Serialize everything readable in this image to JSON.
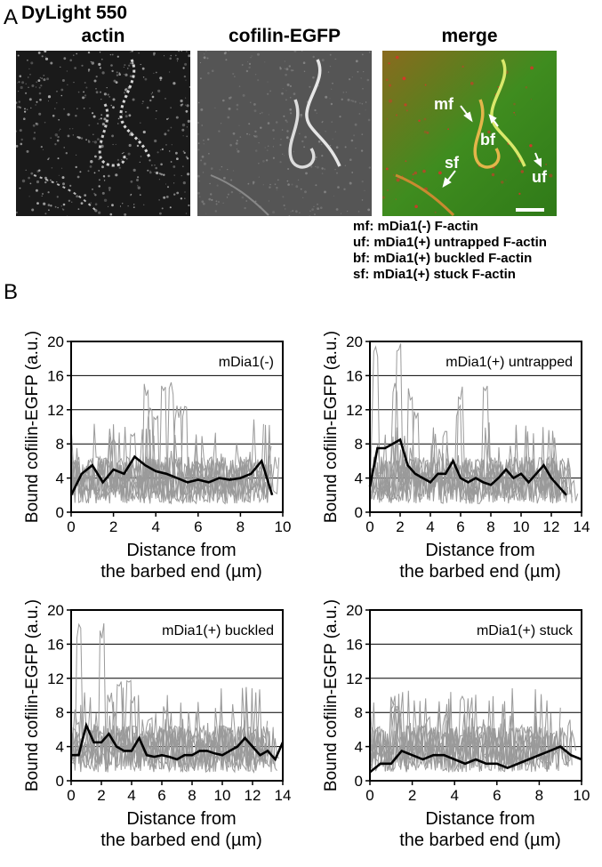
{
  "panel_a": {
    "letter": "A",
    "image_titles": [
      "DyLight 550\nactin",
      "cofilin-EGFP",
      "merge"
    ],
    "dylight_line": "DyLight 550",
    "actin_line": "actin",
    "cofilin_title": "cofilin-EGFP",
    "merge_title": "merge",
    "arrow_labels": {
      "mf": "mf",
      "bf": "bf",
      "sf": "sf",
      "uf": "uf"
    },
    "legend": [
      "mf: mDia1(-) F-actin",
      "uf: mDia1(+) untrapped F-actin",
      "bf: mDia1(+) buckled F-actin",
      "sf: mDia1(+) stuck F-actin"
    ],
    "colors": {
      "actin": "#e0302a",
      "cofilin": "#3cc43c"
    }
  },
  "panel_b": {
    "letter": "B"
  },
  "chart_data": [
    {
      "type": "line",
      "title": "mDia1(-)",
      "xlabel": "Distance from\nthe barbed end (µm)",
      "ylabel": "Bound cofilin-EGFP (a.u.)",
      "xlim": [
        0,
        10
      ],
      "ylim": [
        0,
        20
      ],
      "xticks": [
        0,
        2,
        4,
        6,
        8,
        10
      ],
      "yticks": [
        0,
        4,
        8,
        12,
        16,
        20
      ],
      "grid": "horizontal",
      "mean": {
        "x": [
          0,
          0.5,
          1,
          1.5,
          2,
          2.5,
          3,
          3.5,
          4,
          4.5,
          5,
          5.5,
          6,
          6.5,
          7,
          7.5,
          8,
          8.5,
          9,
          9.5
        ],
        "y": [
          2,
          4.5,
          5.5,
          3.5,
          5,
          4.5,
          6.5,
          5.5,
          4.8,
          4.5,
          4,
          3.5,
          3.8,
          3.5,
          4,
          3.8,
          4,
          4.5,
          6,
          2
        ]
      },
      "peaks": [
        15.5,
        13,
        12.5,
        16,
        9.5,
        9.5
      ]
    },
    {
      "type": "line",
      "title": "mDia1(+) untrapped",
      "xlabel": "Distance from\nthe barbed end (µm)",
      "ylabel": "Bound cofilin-EGFP (a.u.)",
      "xlim": [
        0,
        14
      ],
      "ylim": [
        0,
        20
      ],
      "xticks": [
        0,
        2,
        4,
        6,
        8,
        10,
        12,
        14
      ],
      "yticks": [
        0,
        4,
        8,
        12,
        16,
        20
      ],
      "grid": "horizontal",
      "mean": {
        "x": [
          0,
          0.5,
          1,
          1.5,
          2,
          2.5,
          3,
          3.5,
          4,
          4.5,
          5,
          5.5,
          6,
          6.5,
          7,
          7.5,
          8,
          8.5,
          9,
          9.5,
          10,
          10.5,
          11,
          11.5,
          12,
          12.5,
          13
        ],
        "y": [
          3,
          7.5,
          7.5,
          8,
          8.5,
          5.5,
          4.5,
          4,
          3.5,
          4.5,
          4.5,
          6,
          4,
          3.5,
          4,
          3.5,
          3.2,
          4,
          5,
          4,
          4.5,
          3.5,
          4.5,
          5.5,
          4,
          3,
          2
        ]
      },
      "peaks": [
        20,
        16,
        15,
        12,
        13,
        9.5
      ]
    },
    {
      "type": "line",
      "title": "mDia1(+) buckled",
      "xlabel": "Distance from\nthe barbed end (µm)",
      "ylabel": "Bound cofilin-EGFP (a.u.)",
      "xlim": [
        0,
        14
      ],
      "ylim": [
        0,
        20
      ],
      "xticks": [
        0,
        2,
        4,
        6,
        8,
        10,
        12,
        14
      ],
      "yticks": [
        0,
        4,
        8,
        12,
        16,
        20
      ],
      "grid": "horizontal",
      "mean": {
        "x": [
          0,
          0.5,
          1,
          1.5,
          2,
          2.5,
          3,
          3.5,
          4,
          4.5,
          5,
          5.5,
          6,
          6.5,
          7,
          7.5,
          8,
          8.5,
          9,
          9.5,
          10,
          10.5,
          11,
          11.5,
          12,
          12.5,
          13,
          13.5,
          14
        ],
        "y": [
          3,
          3,
          6.5,
          4.5,
          4.5,
          5.5,
          4,
          3.5,
          3.5,
          5,
          3,
          2.8,
          3,
          2.8,
          2.5,
          3,
          3,
          3.5,
          3.5,
          3.2,
          3,
          3.5,
          4,
          5,
          4,
          3,
          3.5,
          2.5,
          4.5
        ]
      },
      "peaks": [
        18.5,
        12,
        11,
        8.5,
        8,
        9
      ]
    },
    {
      "type": "line",
      "title": "mDia1(+) stuck",
      "xlabel": "Distance from\nthe barbed end (µm)",
      "ylabel": "Bound cofilin-EGFP (a.u.)",
      "xlim": [
        0,
        10
      ],
      "ylim": [
        0,
        20
      ],
      "xticks": [
        0,
        2,
        4,
        6,
        8,
        10
      ],
      "yticks": [
        0,
        4,
        8,
        12,
        16,
        20
      ],
      "grid": "horizontal",
      "mean": {
        "x": [
          0,
          0.5,
          1,
          1.5,
          2,
          2.5,
          3,
          3.5,
          4,
          4.5,
          5,
          5.5,
          6,
          6.5,
          7,
          7.5,
          8,
          8.5,
          9,
          9.5,
          10
        ],
        "y": [
          1,
          2,
          2,
          3.5,
          3,
          2.5,
          3,
          3,
          2.5,
          2,
          2.5,
          2,
          2,
          1.5,
          2,
          2.5,
          3,
          3.5,
          4,
          3,
          2.5
        ]
      },
      "peaks": [
        9,
        10,
        8,
        7.5,
        9,
        10
      ]
    }
  ]
}
